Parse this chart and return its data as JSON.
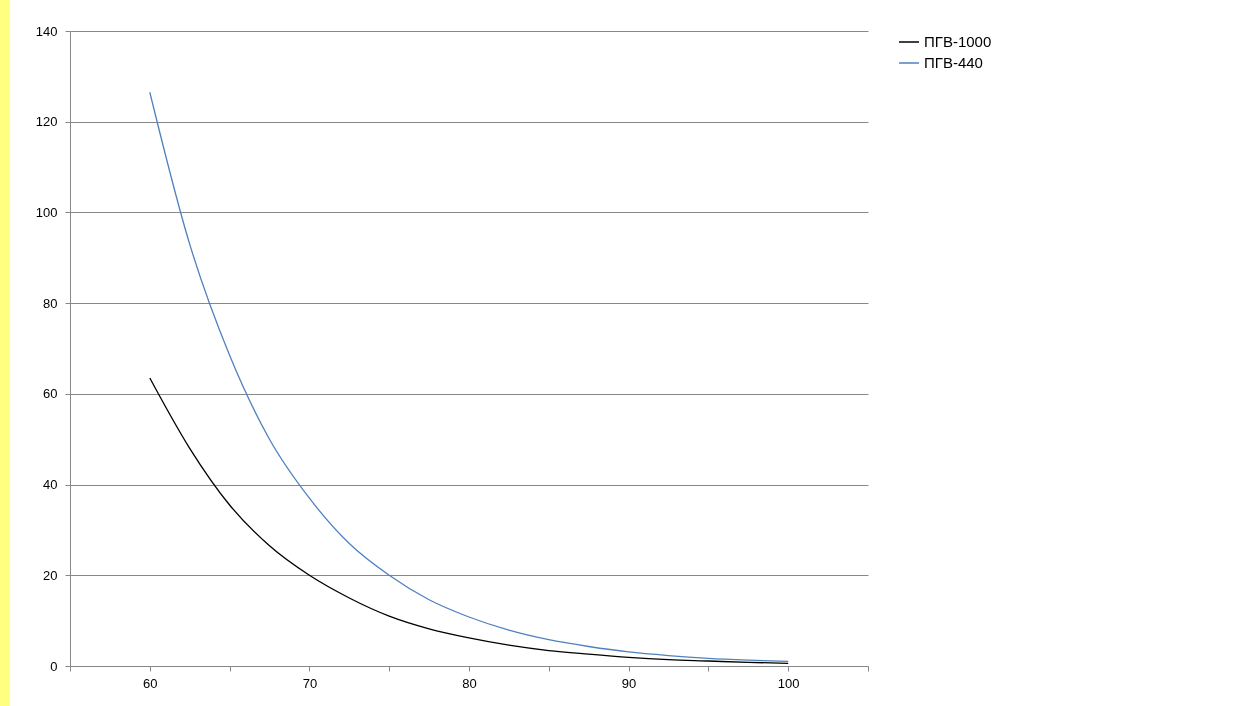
{
  "chart_data": {
    "type": "line",
    "x": [
      60,
      62.5,
      65,
      67.5,
      70,
      72.5,
      75,
      77.5,
      80,
      82.5,
      85,
      87.5,
      90,
      92.5,
      95,
      97.5,
      100
    ],
    "series": [
      {
        "name": "ПГВ-1000",
        "color": "#000000",
        "values": [
          63.5,
          48,
          35.5,
          26.5,
          20,
          15,
          11,
          8.2,
          6.2,
          4.6,
          3.4,
          2.6,
          1.9,
          1.4,
          1.1,
          0.8,
          0.6
        ]
      },
      {
        "name": "ПГВ-440",
        "color": "#4f81bd",
        "values": [
          126.5,
          93,
          68.5,
          50,
          37,
          27,
          20,
          14.6,
          10.8,
          7.9,
          5.8,
          4.3,
          3.1,
          2.3,
          1.7,
          1.3,
          1.0
        ]
      }
    ],
    "xlim": [
      55,
      105
    ],
    "xticks": [
      {
        "value": 55,
        "label": null
      },
      60,
      {
        "value": 65,
        "label": null
      },
      70,
      {
        "value": 75,
        "label": null
      },
      80,
      {
        "value": 85,
        "label": null
      },
      90,
      {
        "value": 95,
        "label": null
      },
      100,
      {
        "value": 105,
        "label": null
      }
    ],
    "ylim": [
      0,
      140
    ],
    "yticks": [
      0,
      20,
      40,
      60,
      80,
      100,
      120,
      140
    ],
    "grid": "y",
    "legend": "right",
    "marker": "none",
    "line_style": "solid"
  }
}
